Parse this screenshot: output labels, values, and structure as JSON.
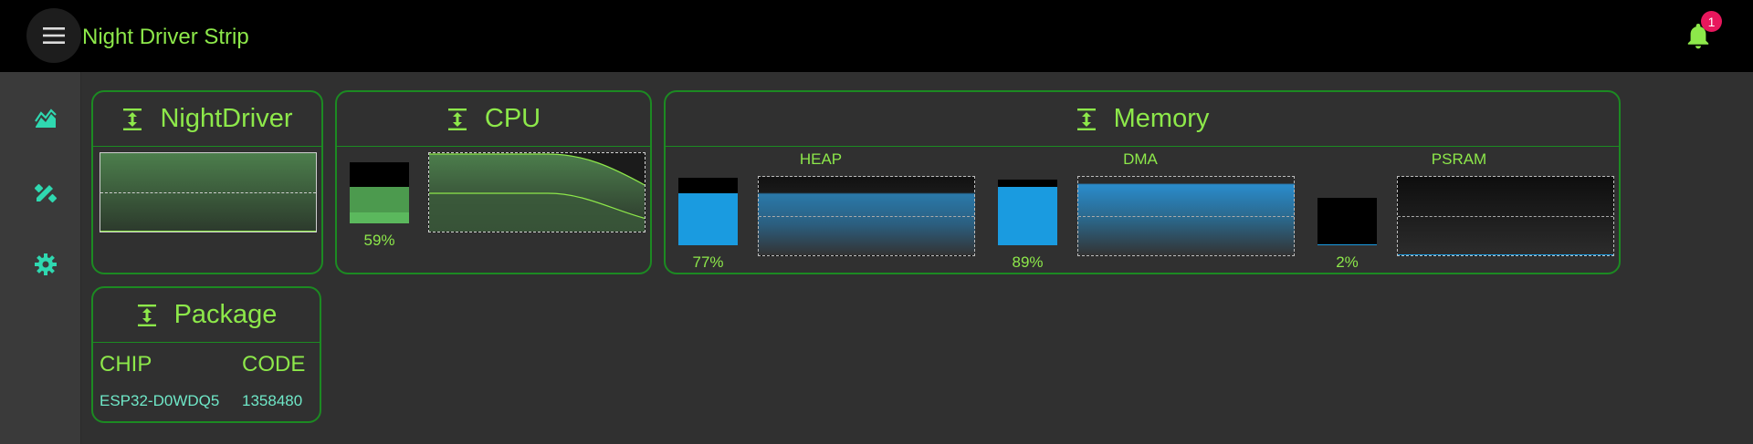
{
  "app": {
    "title": "Night Driver Strip",
    "notification_count": "1"
  },
  "sidebar": {
    "items": [
      {
        "icon": "area-chart-icon"
      },
      {
        "icon": "design-tools-icon"
      },
      {
        "icon": "settings-gear-icon"
      }
    ]
  },
  "cards": {
    "nightdriver": {
      "title": "NightDriver"
    },
    "cpu": {
      "title": "CPU",
      "usage_label": "59%",
      "usage": 0.59
    },
    "memory": {
      "title": "Memory",
      "heap": {
        "label": "HEAP",
        "usage_label": "77%",
        "usage": 0.77
      },
      "dma": {
        "label": "DMA",
        "usage_label": "89%",
        "usage": 0.89
      },
      "psram": {
        "label": "PSRAM",
        "usage_label": "2%",
        "usage": 0.02
      }
    },
    "package": {
      "title": "Package",
      "chip_header": "CHIP",
      "code_header": "CODE",
      "chip_value": "ESP32-D0WDQ5",
      "code_value": "1358480"
    }
  },
  "colors": {
    "accent": "#8de84a",
    "border": "#1c8a22",
    "mem_blue": "#1a9be0",
    "cpu_green": "#4c9a4e",
    "badge": "#e8175d"
  }
}
